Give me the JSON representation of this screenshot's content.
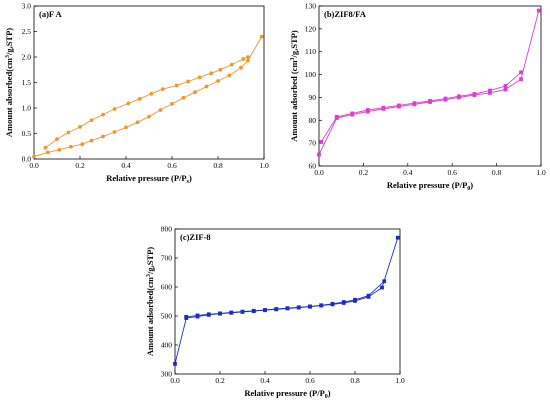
{
  "chart_data": [
    {
      "id": "fa",
      "type": "line",
      "title": "(a)F A",
      "xlabel_main": "Relative pressure (P/P",
      "xlabel_sub": "s",
      "xlabel_end": ")",
      "ylabel_pre": "Amount absorbed(cm",
      "ylabel_sup": "3",
      "ylabel_post": "/g,STP)",
      "xlim": [
        0,
        1.0
      ],
      "ylim": [
        0,
        3.0
      ],
      "xticks": [
        "0.0",
        "0.2",
        "0.4",
        "0.6",
        "0.8",
        "1.0"
      ],
      "yticks": [
        "0.0",
        "0.5",
        "1.0",
        "1.5",
        "2.0",
        "2.5",
        "3.0"
      ],
      "color": "#f0962a",
      "marker": "circle",
      "series": [
        {
          "x": [
            0.0,
            0.06,
            0.11,
            0.16,
            0.21,
            0.25,
            0.3,
            0.35,
            0.4,
            0.45,
            0.5,
            0.55,
            0.6,
            0.65,
            0.7,
            0.75,
            0.8,
            0.85,
            0.9,
            0.93,
            0.99
          ],
          "y": [
            0.05,
            0.13,
            0.18,
            0.24,
            0.29,
            0.36,
            0.44,
            0.53,
            0.62,
            0.72,
            0.83,
            0.96,
            1.08,
            1.2,
            1.31,
            1.42,
            1.53,
            1.64,
            1.79,
            1.93,
            2.4
          ]
        },
        {
          "x": [
            0.93,
            0.91,
            0.86,
            0.81,
            0.77,
            0.72,
            0.67,
            0.62,
            0.56,
            0.51,
            0.46,
            0.41,
            0.35,
            0.3,
            0.25,
            0.2,
            0.15,
            0.1,
            0.05
          ],
          "y": [
            2.0,
            1.96,
            1.85,
            1.75,
            1.68,
            1.6,
            1.52,
            1.44,
            1.37,
            1.28,
            1.18,
            1.09,
            0.98,
            0.87,
            0.76,
            0.63,
            0.52,
            0.39,
            0.22
          ]
        }
      ]
    },
    {
      "id": "zif8fa",
      "type": "line",
      "title": "(b)ZIF8/FA",
      "xlabel_main": "Relative pressure (P/P",
      "xlabel_sub": "0",
      "xlabel_end": ")",
      "ylabel_pre": "Amount adsorbed (cm",
      "ylabel_sup": "3",
      "ylabel_post": "/g,STP)",
      "xlim": [
        0,
        1.0
      ],
      "ylim": [
        60,
        130
      ],
      "xticks": [
        "0.0",
        "0.2",
        "0.4",
        "0.6",
        "0.8",
        "1.0"
      ],
      "yticks": [
        "60",
        "70",
        "80",
        "90",
        "100",
        "110",
        "120",
        "130"
      ],
      "color": "#e23ad8",
      "marker": "square",
      "series": [
        {
          "x": [
            0.0,
            0.08,
            0.15,
            0.22,
            0.29,
            0.36,
            0.43,
            0.5,
            0.57,
            0.63,
            0.7,
            0.77,
            0.84,
            0.91,
            0.99
          ],
          "y": [
            65,
            81,
            82.5,
            83.8,
            85,
            86,
            87,
            88,
            89,
            90,
            91,
            92,
            93.5,
            98,
            128
          ]
        },
        {
          "x": [
            0.91,
            0.84,
            0.77,
            0.7,
            0.63,
            0.57,
            0.5,
            0.43,
            0.36,
            0.29,
            0.22,
            0.15,
            0.08,
            0.01
          ],
          "y": [
            101,
            95,
            93,
            91.5,
            90.5,
            89.5,
            88.5,
            87.5,
            86.5,
            85.5,
            84.5,
            83,
            81.5,
            70.5
          ]
        }
      ]
    },
    {
      "id": "zif8",
      "type": "line",
      "title": "(c)ZIF-8",
      "xlabel_main": "Relative pressure (P/P",
      "xlabel_sub": "0",
      "xlabel_end": ")",
      "ylabel_pre": "Amount adsorbed(cm",
      "ylabel_sup": "3",
      "ylabel_post": "/g,STP)",
      "xlim": [
        0,
        1.0
      ],
      "ylim": [
        300,
        800
      ],
      "xticks": [
        "0.0",
        "0.2",
        "0.4",
        "0.6",
        "0.8",
        "1.0"
      ],
      "yticks": [
        "300",
        "400",
        "500",
        "600",
        "700",
        "800"
      ],
      "color": "#1c2cc8",
      "marker": "square",
      "series": [
        {
          "x": [
            0.0,
            0.05,
            0.1,
            0.15,
            0.2,
            0.25,
            0.3,
            0.35,
            0.4,
            0.45,
            0.5,
            0.55,
            0.6,
            0.65,
            0.7,
            0.75,
            0.8,
            0.86,
            0.92,
            0.99
          ],
          "y": [
            335,
            493,
            498,
            504,
            508,
            511,
            514,
            517,
            520,
            523,
            526,
            529,
            532,
            536,
            540,
            545,
            552,
            566,
            598,
            770
          ]
        },
        {
          "x": [
            0.93,
            0.86,
            0.8,
            0.75,
            0.7,
            0.65,
            0.6,
            0.55,
            0.5,
            0.45,
            0.4,
            0.35,
            0.3,
            0.25,
            0.2,
            0.15,
            0.1,
            0.05
          ],
          "y": [
            620,
            570,
            556,
            548,
            542,
            537,
            533,
            530,
            527,
            524,
            521,
            518,
            515,
            512,
            509,
            506,
            502,
            497
          ]
        }
      ]
    }
  ]
}
